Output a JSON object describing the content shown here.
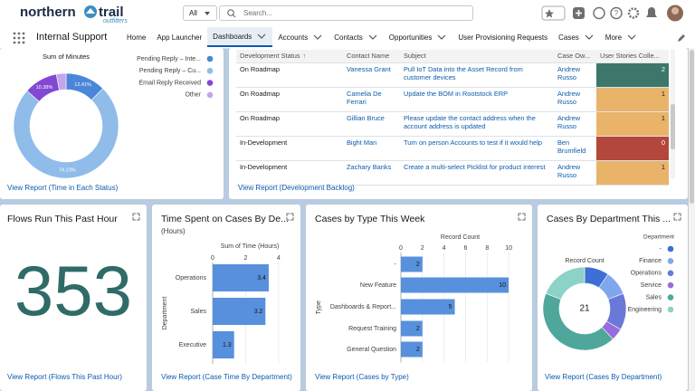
{
  "header": {
    "logo_left": "northern",
    "logo_right": "trail",
    "logo_sub": "outfitters",
    "search_scope": "All",
    "search_placeholder": "Search..."
  },
  "nav": {
    "app_name": "Internal Support",
    "active_tab": 2,
    "tabs": [
      {
        "label": "Home",
        "menu": false
      },
      {
        "label": "App Launcher",
        "menu": false
      },
      {
        "label": "Dashboards",
        "menu": true
      },
      {
        "label": "Accounts",
        "menu": true
      },
      {
        "label": "Contacts",
        "menu": true
      },
      {
        "label": "Opportunities",
        "menu": true
      },
      {
        "label": "User Provisioning Requests",
        "menu": false
      },
      {
        "label": "Cases",
        "menu": true
      },
      {
        "label": "More",
        "menu": true
      }
    ]
  },
  "widgets": [
    {
      "type": "donut",
      "title": "Sum of Minutes",
      "categories": [
        "Pending Reply – Inte...",
        "Pending Reply – Cu...",
        "Email Reply Received",
        "Other"
      ],
      "values": [
        12.41,
        74.23,
        10.38,
        2.98
      ],
      "value_labels": [
        "12.41%",
        "74.23%",
        "10.38%",
        null
      ],
      "colors": [
        "#4b86d8",
        "#8fbce9",
        "#8447d4",
        "#c3a6ee"
      ],
      "link": "View Report (Time in Each Status)"
    },
    {
      "type": "table",
      "columns": [
        "Development Status",
        "Contact Name",
        "Subject",
        "Case Ow...",
        "User Stories Colle..."
      ],
      "rows": [
        [
          "On Roadmap",
          "Vanessa Grant",
          "Pull IoT Data into the Asset Record from customer devices",
          "Andrew Russo",
          2
        ],
        [
          "On Roadmap",
          "Camelia De Ferrari",
          "Update the BOM in Rootstock ERP",
          "Andrew Russo",
          1
        ],
        [
          "On Roadmap",
          "Gillian Bruce",
          "Please update the contact address when the account address is updated",
          "Andrew Russo",
          1
        ],
        [
          "In-Development",
          "Bight Man",
          "Turn on person Accounts to test if it would help",
          "Ben Brumfield",
          0
        ],
        [
          "In-Development",
          "Zachary Banks",
          "Create a multi-select Picklist for product interest",
          "Andrew Russo",
          1
        ]
      ],
      "highlight_colors": [
        "#3d776c",
        "#e9b46a",
        "#e9b46a",
        "#b4473c",
        "#e9b46a"
      ],
      "link": "View Report (Development Backlog)"
    },
    {
      "type": "metric",
      "title": "Flows Run This Past Hour",
      "value": 353,
      "color": "#2f6c68",
      "link": "View Report (Flows This Past Hour)"
    },
    {
      "type": "hbar",
      "title": "Time Spent on Cases By De...",
      "subtitle": "(Hours)",
      "x_label": "Sum of Time (Hours)",
      "y_label": "Department",
      "categories": [
        "Operations",
        "Sales",
        "Executive"
      ],
      "values": [
        3.4,
        3.2,
        1.3
      ],
      "xlim": [
        0,
        4.5
      ],
      "xticks": [
        0,
        2,
        4
      ],
      "color": "#5790dc",
      "link": "View Report (Case Time By Department)"
    },
    {
      "type": "hbar",
      "title": "Cases by Type This Week",
      "x_label": "Record Count",
      "y_label": "Type",
      "categories": [
        "-",
        "New Feature",
        "Dashboards & Report...",
        "Request Training",
        "General Question"
      ],
      "values": [
        2,
        10,
        5,
        2,
        2
      ],
      "xlim": [
        0,
        11
      ],
      "xticks": [
        0,
        2,
        4,
        6,
        8,
        10
      ],
      "color": "#5790dc",
      "link": "View Report (Cases by Type)"
    },
    {
      "type": "donut",
      "title": "Cases By Department This ...",
      "center_label": "Record Count",
      "total": 21,
      "legend_title": "Department",
      "categories": [
        "-",
        "Finance",
        "Operations",
        "Service",
        "Sales",
        "Engineering"
      ],
      "values": [
        2,
        2,
        3,
        1,
        9,
        4
      ],
      "colors": [
        "#3d6fd6",
        "#7fa7ee",
        "#6a78d8",
        "#9a6bdc",
        "#4fa79c",
        "#8dd2c6"
      ],
      "link": "View Report (Cases By Department)"
    }
  ]
}
